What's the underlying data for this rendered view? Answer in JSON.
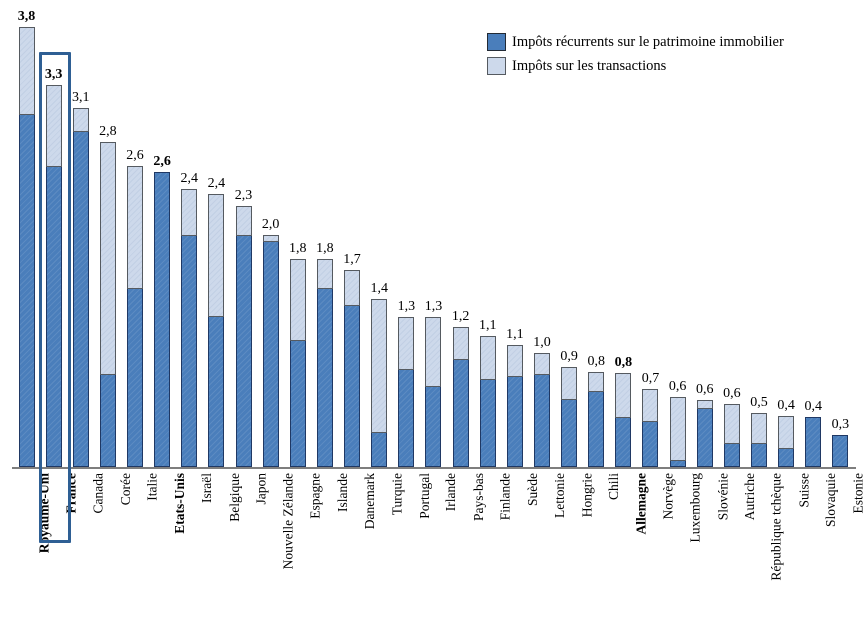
{
  "legend": {
    "items": [
      {
        "label": "Impôts récurrents sur le patrimoine immobilier",
        "color": "#4A7EBB"
      },
      {
        "label": "Impôts sur les transactions",
        "color": "#CDD9EB"
      }
    ]
  },
  "colors": {
    "recurrent_fill": "#4A7EBB",
    "recurrent_border": "#1F3864",
    "transactions_fill": "#CDD9EB",
    "transactions_border": "#555A60",
    "axis": "#7E7E7E",
    "highlight_box_border": "#2E5F94",
    "text": "#000000"
  },
  "chart_data": {
    "type": "bar",
    "stacked": true,
    "grid": false,
    "legend_position": "top-right",
    "ylim": [
      0,
      4
    ],
    "categories": [
      "Royaume-Uni",
      "France",
      "Canada",
      "Corée",
      "Italie",
      "Etats-Unis",
      "Israël",
      "Belgique",
      "Japon",
      "Nouvelle Zélande",
      "Espagne",
      "Islande",
      "Danemark",
      "Turquie",
      "Portugal",
      "Irlande",
      "Pays-bas",
      "Finlande",
      "Suède",
      "Lettonie",
      "Hongrie",
      "Chili",
      "Allemagne",
      "Norvège",
      "Luxembourg",
      "Slovénie",
      "Autriche",
      "République tchèque",
      "Suisse",
      "Slovaquie",
      "Estonie"
    ],
    "series": [
      {
        "name": "Impôts récurrents sur le patrimoine immobilier",
        "color": "#4A7EBB",
        "values": [
          3.05,
          2.6,
          2.9,
          0.8,
          1.55,
          2.55,
          2.0,
          1.3,
          2.0,
          1.95,
          1.1,
          1.55,
          1.4,
          0.3,
          0.85,
          0.7,
          0.93,
          0.76,
          0.79,
          0.8,
          0.59,
          0.66,
          0.43,
          0.4,
          0.06,
          0.51,
          0.21,
          0.21,
          0.16,
          0.43,
          0.28
        ]
      },
      {
        "name": "Impôts sur les transactions",
        "color": "#CDD9EB",
        "values": [
          0.75,
          0.7,
          0.2,
          2.0,
          1.05,
          0.0,
          0.4,
          1.05,
          0.25,
          0.05,
          0.7,
          0.25,
          0.3,
          1.15,
          0.45,
          0.6,
          0.28,
          0.37,
          0.27,
          0.18,
          0.28,
          0.16,
          0.38,
          0.28,
          0.54,
          0.07,
          0.34,
          0.26,
          0.28,
          0.0,
          0.0
        ]
      }
    ],
    "totals": [
      3.8,
      3.3,
      3.1,
      2.8,
      2.6,
      2.6,
      2.4,
      2.4,
      2.3,
      2.0,
      1.8,
      1.8,
      1.7,
      1.4,
      1.3,
      1.3,
      1.2,
      1.1,
      1.1,
      1.0,
      0.9,
      0.8,
      0.8,
      0.7,
      0.6,
      0.6,
      0.6,
      0.5,
      0.4,
      0.4,
      0.3
    ],
    "value_labels": [
      "3,8",
      "3,3",
      "3,1",
      "2,8",
      "2,6",
      "2,6",
      "2,4",
      "2,4",
      "2,3",
      "2,0",
      "1,8",
      "1,8",
      "1,7",
      "1,4",
      "1,3",
      "1,3",
      "1,2",
      "1,1",
      "1,1",
      "1,0",
      "0,9",
      "0,8",
      "0,8",
      "0,7",
      "0,6",
      "0,6",
      "0,6",
      "0,5",
      "0,4",
      "0,4",
      "0,3"
    ],
    "bold_categories": [
      "Royaume-Uni",
      "France",
      "Etats-Unis",
      "Allemagne"
    ],
    "highlighted_category": "France"
  }
}
